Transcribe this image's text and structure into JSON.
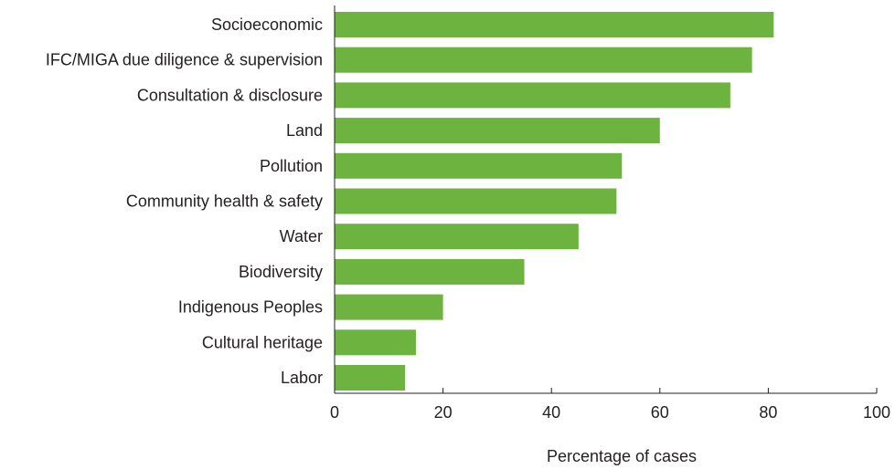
{
  "chart_data": {
    "type": "bar",
    "orientation": "horizontal",
    "categories": [
      "Socioeconomic",
      "IFC/MIGA due diligence & supervision",
      "Consultation & disclosure",
      "Land",
      "Pollution",
      "Community health & safety",
      "Water",
      "Biodiversity",
      "Indigenous Peoples",
      "Cultural heritage",
      "Labor"
    ],
    "values": [
      81,
      77,
      73,
      60,
      53,
      52,
      45,
      35,
      20,
      15,
      13
    ],
    "xlabel": "Percentage of cases",
    "ylabel": "",
    "xlim": [
      0,
      100
    ],
    "xticks": [
      "0",
      "20",
      "40",
      "60",
      "80",
      "100"
    ],
    "grid": false,
    "bar_color": "#6db33f",
    "axis_color": "#231f20"
  }
}
